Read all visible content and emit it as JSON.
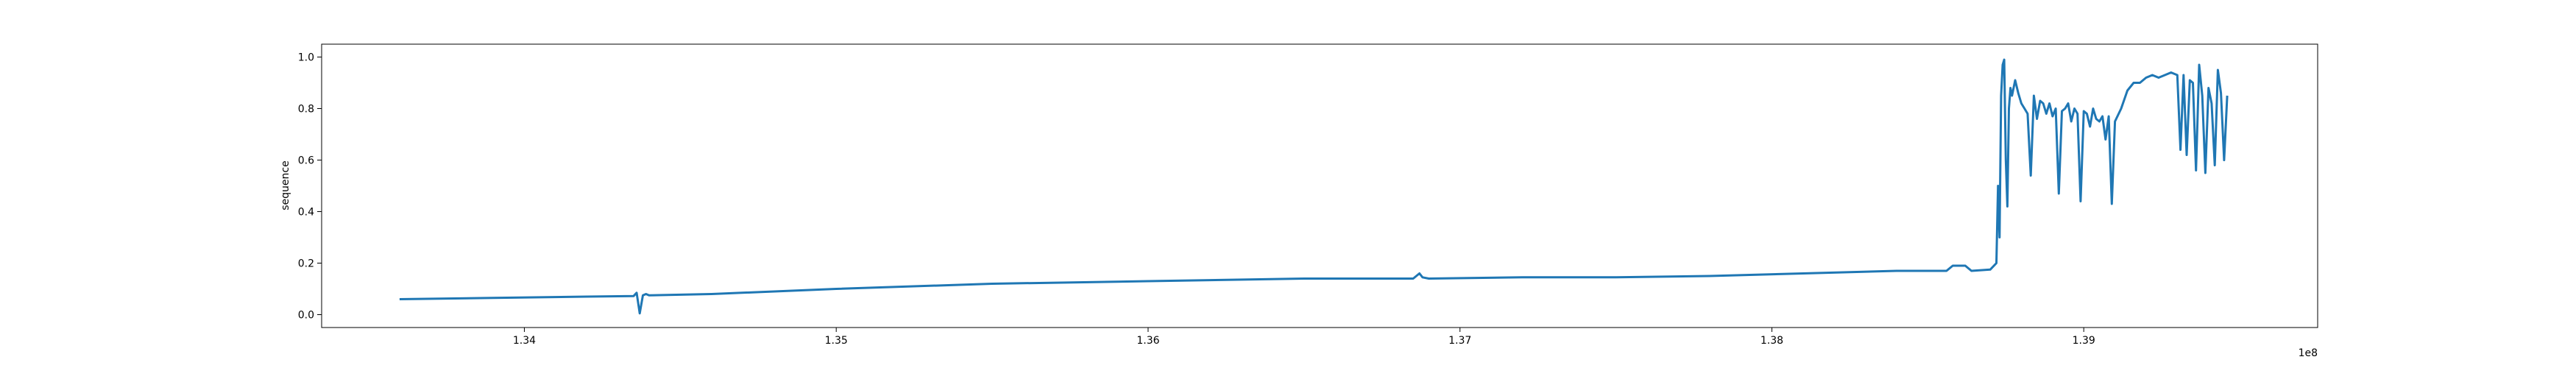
{
  "chart_data": {
    "type": "line",
    "title": "",
    "xlabel": "",
    "ylabel": "sequence",
    "x_offset_label": "1e8",
    "xlim": [
      133350000,
      139750000
    ],
    "ylim": [
      -0.05,
      1.05
    ],
    "grid": false,
    "legend": "none",
    "line_color": "#1f77b4",
    "x_ticks": [
      {
        "value": 134000000,
        "label": "1.34"
      },
      {
        "value": 135000000,
        "label": "1.35"
      },
      {
        "value": 136000000,
        "label": "1.36"
      },
      {
        "value": 137000000,
        "label": "1.37"
      },
      {
        "value": 138000000,
        "label": "1.38"
      },
      {
        "value": 139000000,
        "label": "1.39"
      }
    ],
    "y_ticks": [
      {
        "value": 0.0,
        "label": "0.0"
      },
      {
        "value": 0.2,
        "label": "0.2"
      },
      {
        "value": 0.4,
        "label": "0.4"
      },
      {
        "value": 0.6,
        "label": "0.6"
      },
      {
        "value": 0.8,
        "label": "0.8"
      },
      {
        "value": 1.0,
        "label": "1.0"
      }
    ],
    "series": [
      {
        "x": [
          133600000,
          133900000,
          134200000,
          134350000,
          134360000,
          134370000,
          134380000,
          134390000,
          134400000,
          134600000,
          135000000,
          135500000,
          136000000,
          136500000,
          136850000,
          136870000,
          136880000,
          136900000,
          137200000,
          137500000,
          137800000,
          138100000,
          138400000,
          138560000,
          138580000,
          138620000,
          138640000,
          138700000,
          138720000,
          138725000,
          138730000,
          138735000,
          138740000,
          138745000,
          138750000,
          138755000,
          138760000,
          138765000,
          138770000,
          138780000,
          138790000,
          138800000,
          138810000,
          138820000,
          138830000,
          138840000,
          138850000,
          138860000,
          138870000,
          138880000,
          138890000,
          138900000,
          138910000,
          138920000,
          138930000,
          138940000,
          138950000,
          138960000,
          138970000,
          138980000,
          138990000,
          139000000,
          139010000,
          139020000,
          139030000,
          139040000,
          139050000,
          139060000,
          139070000,
          139080000,
          139090000,
          139100000,
          139120000,
          139140000,
          139160000,
          139180000,
          139200000,
          139220000,
          139240000,
          139260000,
          139280000,
          139300000,
          139310000,
          139320000,
          139330000,
          139340000,
          139350000,
          139360000,
          139370000,
          139380000,
          139390000,
          139400000,
          139410000,
          139420000,
          139430000,
          139440000,
          139450000,
          139460000
        ],
        "y": [
          0.06,
          0.065,
          0.07,
          0.072,
          0.085,
          0.005,
          0.075,
          0.08,
          0.075,
          0.08,
          0.1,
          0.12,
          0.13,
          0.14,
          0.14,
          0.16,
          0.145,
          0.14,
          0.145,
          0.145,
          0.15,
          0.16,
          0.17,
          0.17,
          0.19,
          0.19,
          0.17,
          0.175,
          0.2,
          0.5,
          0.3,
          0.85,
          0.97,
          0.99,
          0.6,
          0.42,
          0.8,
          0.88,
          0.85,
          0.91,
          0.86,
          0.82,
          0.8,
          0.78,
          0.54,
          0.85,
          0.76,
          0.83,
          0.82,
          0.78,
          0.82,
          0.77,
          0.8,
          0.47,
          0.79,
          0.8,
          0.82,
          0.75,
          0.8,
          0.78,
          0.44,
          0.79,
          0.78,
          0.73,
          0.8,
          0.76,
          0.75,
          0.77,
          0.68,
          0.77,
          0.43,
          0.75,
          0.8,
          0.87,
          0.9,
          0.9,
          0.92,
          0.93,
          0.92,
          0.93,
          0.94,
          0.93,
          0.64,
          0.93,
          0.62,
          0.91,
          0.9,
          0.56,
          0.97,
          0.85,
          0.55,
          0.88,
          0.82,
          0.58,
          0.95,
          0.86,
          0.6,
          0.85
        ]
      }
    ]
  }
}
